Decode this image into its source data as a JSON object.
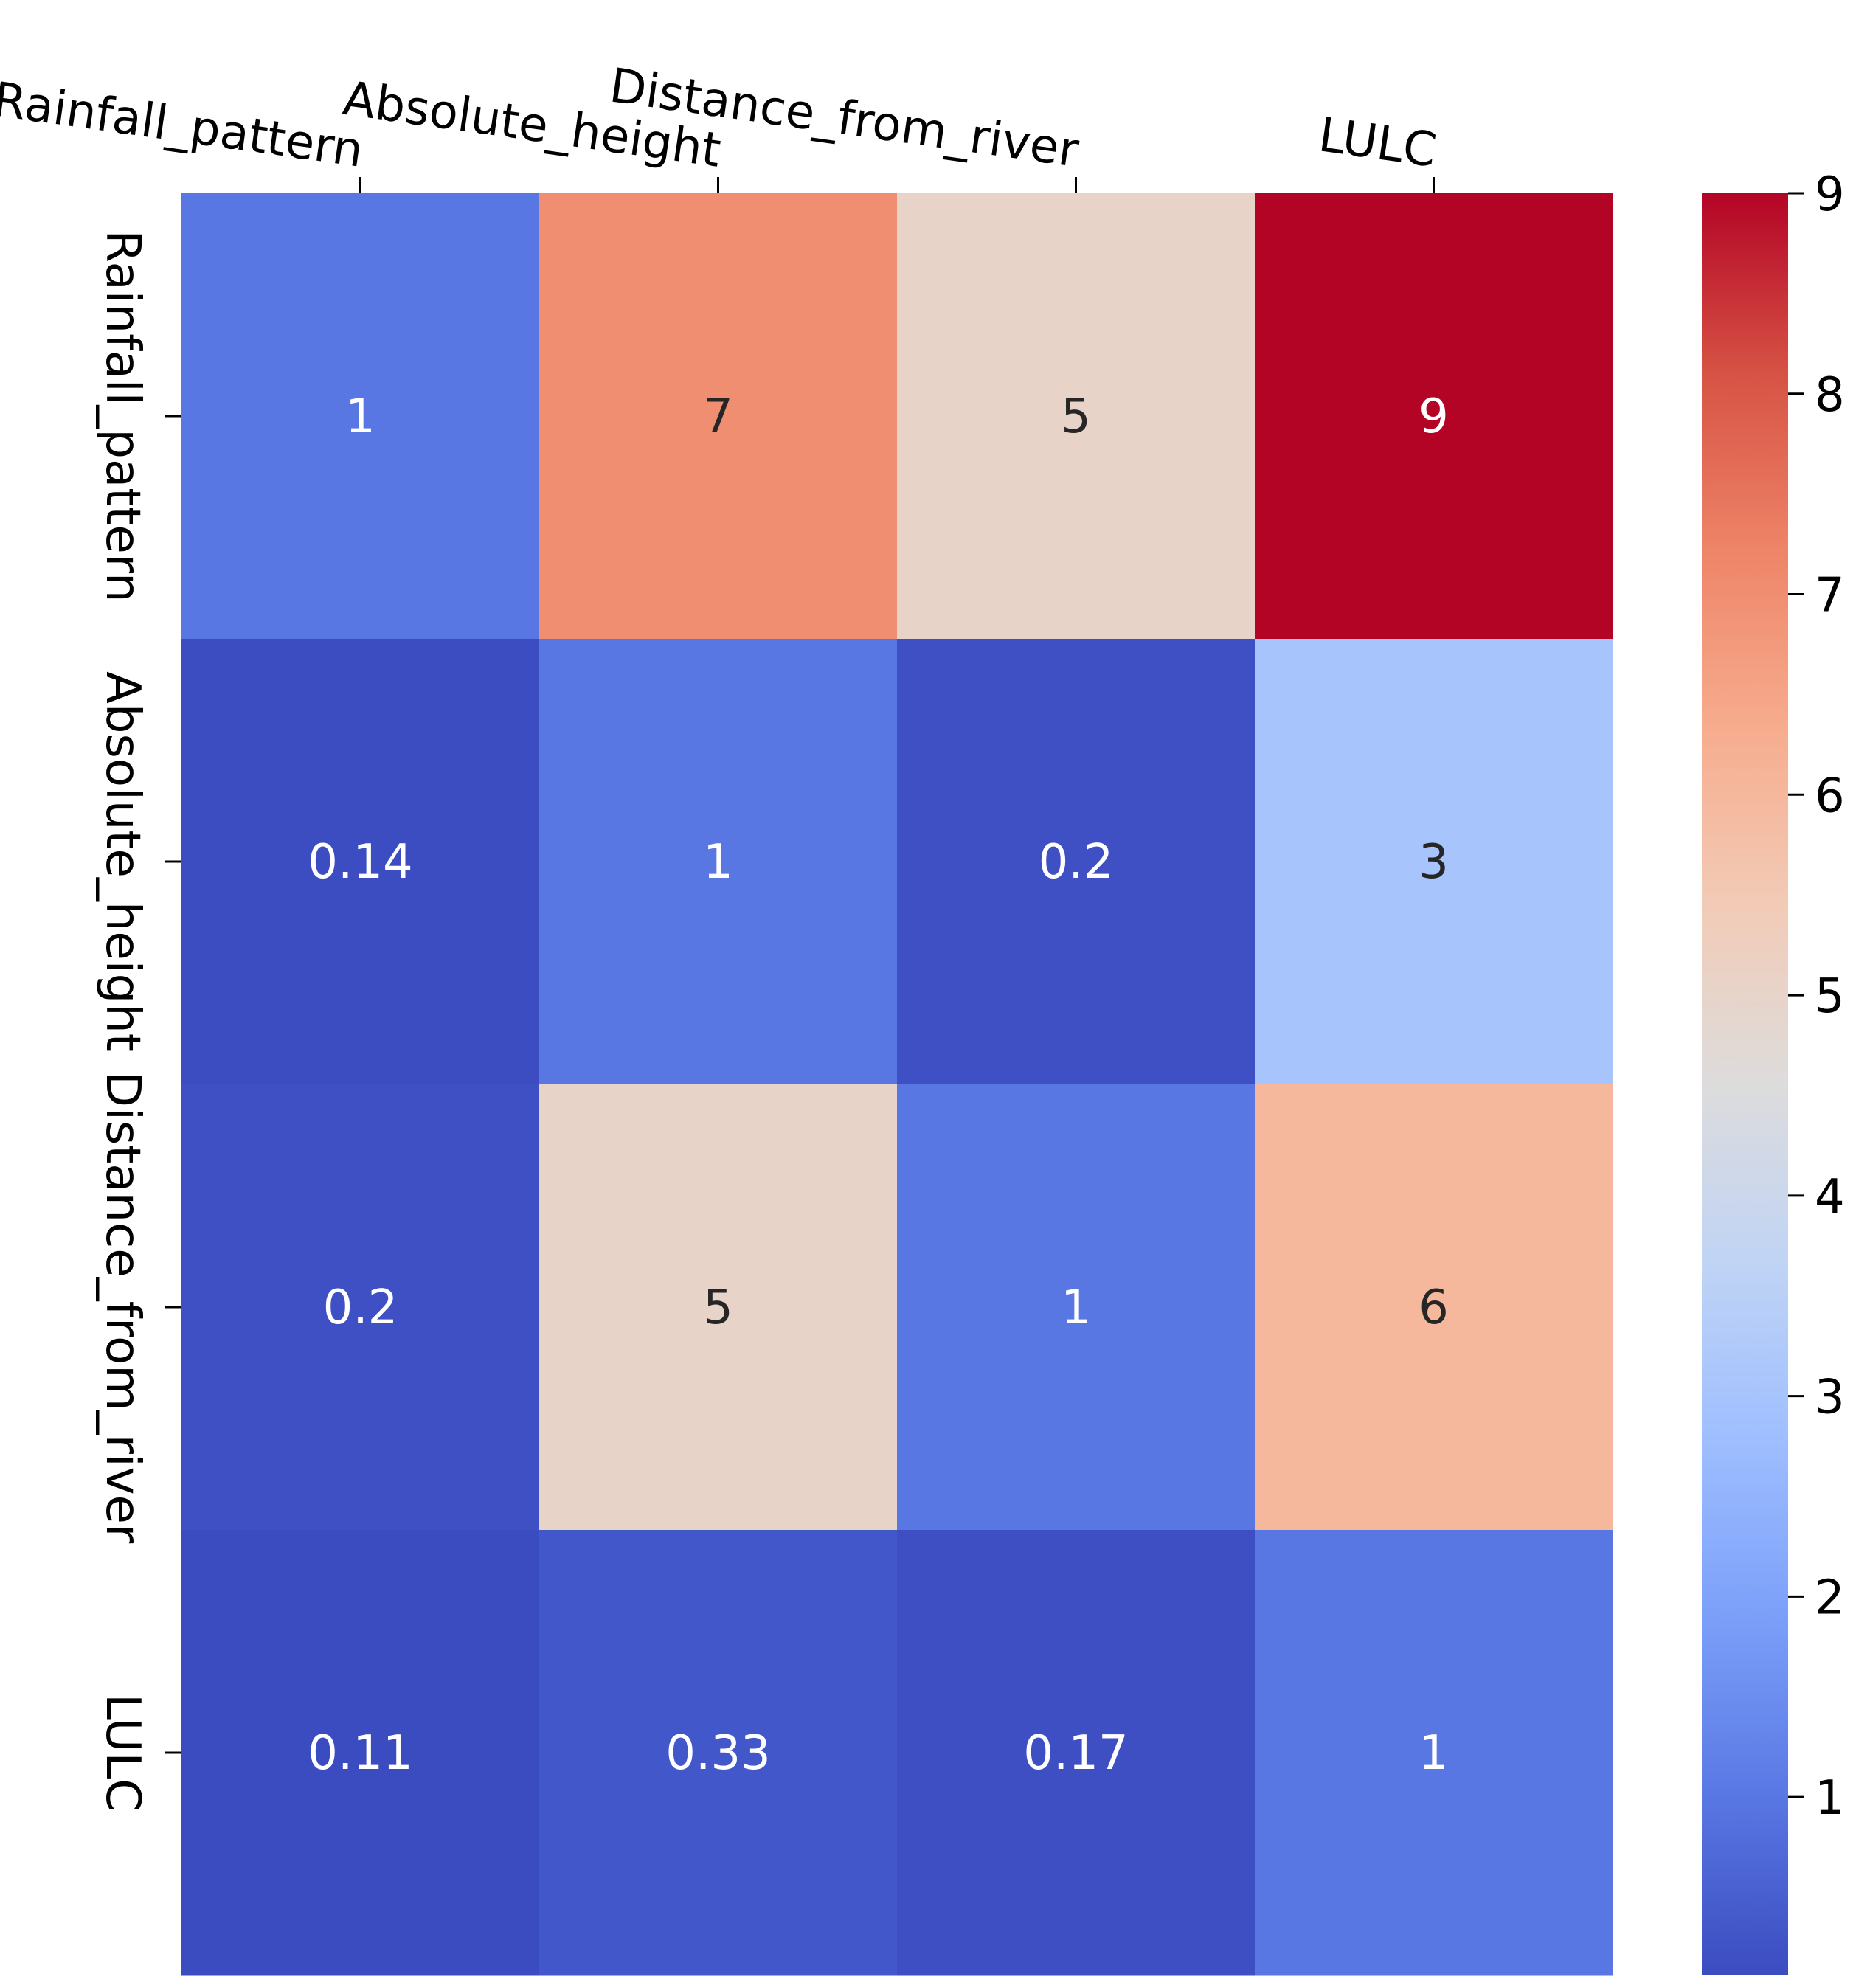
{
  "chart_data": {
    "type": "heatmap",
    "title": "",
    "xlabel": "",
    "ylabel": "",
    "x_categories": [
      "Rainfall_pattern",
      "Absolute_height",
      "Distance_from_river",
      "LULC"
    ],
    "y_categories": [
      "Rainfall_pattern",
      "Absolute_height",
      "Distance_from_river",
      "LULC"
    ],
    "values": [
      [
        1,
        7,
        5,
        9
      ],
      [
        0.14,
        1,
        0.2,
        3
      ],
      [
        0.2,
        5,
        1,
        6
      ],
      [
        0.11,
        0.33,
        0.17,
        1
      ]
    ],
    "cell_labels": [
      [
        "1",
        "7",
        "5",
        "9"
      ],
      [
        "0.14",
        "1",
        "0.2",
        "3"
      ],
      [
        "0.2",
        "5",
        "1",
        "6"
      ],
      [
        "0.11",
        "0.33",
        "0.17",
        "1"
      ]
    ],
    "x_axis_position": "top",
    "colormap": "coolwarm",
    "colormap_stops": [
      "#3b4cc0",
      "#5977e3",
      "#7b9ff9",
      "#9ebeff",
      "#c0d4f5",
      "#dddcdc",
      "#f2cbb7",
      "#f7ac8e",
      "#ee8468",
      "#d65244",
      "#b40426"
    ],
    "colorbar": {
      "vmin": 0.11,
      "vmax": 9,
      "ticks": [
        1,
        2,
        3,
        4,
        5,
        6,
        7,
        8,
        9
      ],
      "tick_labels": [
        "1",
        "2",
        "3",
        "4",
        "5",
        "6",
        "7",
        "8",
        "9"
      ]
    }
  }
}
